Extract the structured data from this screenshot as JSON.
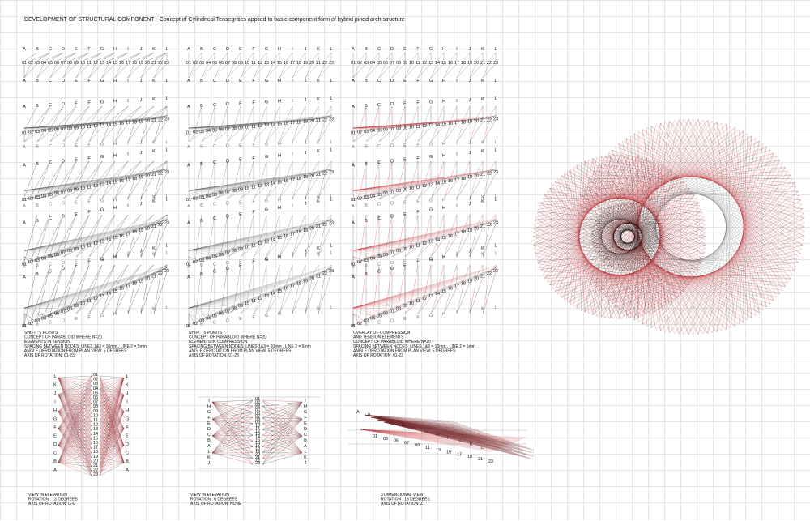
{
  "header": {
    "title": "DEVELOPMENT  OF STRUCTURAL COMPONENT - Concept of Cylindrical Tensegrities applied to basic component  form of hybrid pined arch structure"
  },
  "labels": {
    "letters": [
      "A",
      "B",
      "C",
      "D",
      "E",
      "F",
      "G",
      "H",
      "I",
      "J",
      "K",
      "L"
    ],
    "numbers": [
      "01",
      "02",
      "03",
      "04",
      "05",
      "06",
      "07",
      "08",
      "09",
      "10",
      "11",
      "12",
      "13",
      "14",
      "15",
      "16",
      "17",
      "18",
      "19",
      "20",
      "21",
      "22",
      "23"
    ]
  },
  "panels": [
    {
      "caption": [
        "SHIFT : 6 POINTS",
        "CONCEPT OF PARABLOID WHERE N=20",
        "ELEMENTS IN TENSION",
        "SPACING BETWEEN NODES: LINES 1&3 = 10mm  , LINE 2 = 5mm",
        "ANGLE OFROTATION FROM PLAN VIEW: 5 DEGREES",
        "AXIS OF ROTATION: 01-23"
      ]
    },
    {
      "caption": [
        "SHIFT : 5 POINTS",
        "CONCEPT OF PARABLOID WHERE N=20",
        "ELEMENTS IN COMPRESSION",
        "SPACING BETWEEN NODES: LINES 1&3 = 10mm  , LINE 2 = 5mm",
        "ANGLE OFROTATION FROM PLAN VIEW: 5 DEGREES",
        "AXIS OF ROTATION: 01-23"
      ]
    },
    {
      "caption": [
        "OVERLAY OF COMPRESSION",
        "AND TENSION ELEMENTS",
        "CONCEPT OF PARABLOID WHERE N=20",
        "SPACING BETWEEN NODES: LINES 1&3 = 10mm  , LINE 2 = 5mm",
        "ANGLE OFROTATION FROM PLAN VIEW: 5 DEGREES",
        "AXIS OF ROTATION: 01-23"
      ]
    }
  ],
  "views": [
    {
      "caption": [
        "VIEW IN ELEVATION",
        "ROTATION : 13 DEGREES",
        "AXIS OF ROTATION: G-G"
      ]
    },
    {
      "caption": [
        "VIEW IN ELEVATION",
        "ROTATION : 0 DEGREES",
        "AXIS OF ROTATION: NONE"
      ]
    },
    {
      "caption": [
        "3 DIMENSIONAL VIEW",
        "ROTATION : 13 DEGREES",
        "AXIS OF ROTATION: Z"
      ]
    }
  ]
}
